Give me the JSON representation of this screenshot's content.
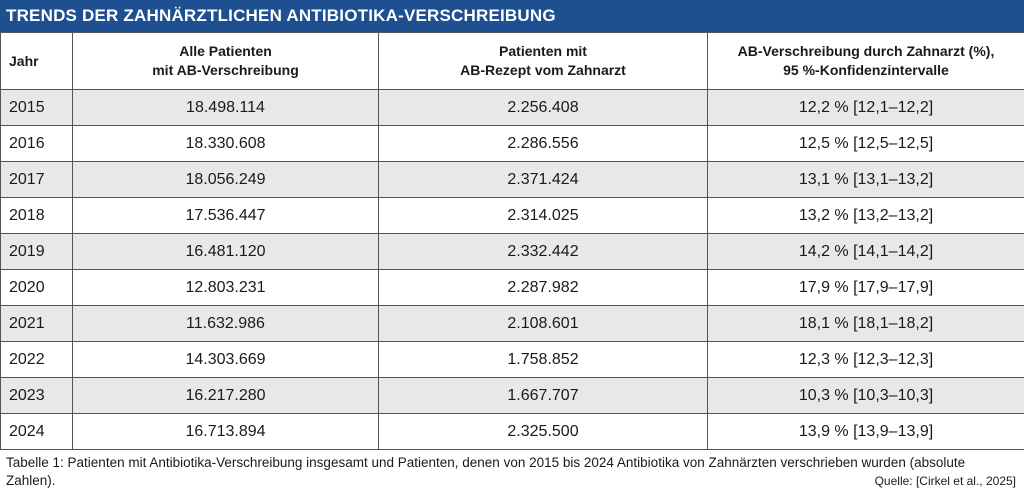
{
  "title": "TRENDS DER ZAHNÄRZTLICHEN ANTIBIOTIKA-VERSCHREIBUNG",
  "headers": [
    [
      "Jahr",
      ""
    ],
    [
      "Alle Patienten",
      "mit AB-Verschreibung"
    ],
    [
      "Patienten mit",
      "AB-Rezept vom Zahnarzt"
    ],
    [
      "AB-Verschreibung durch Zahnarzt (%),",
      "95 %-Konfidenzintervalle"
    ]
  ],
  "rows": [
    [
      "2015",
      "18.498.114",
      "2.256.408",
      "12,2 % [12,1–12,2]"
    ],
    [
      "2016",
      "18.330.608",
      "2.286.556",
      "12,5 % [12,5–12,5]"
    ],
    [
      "2017",
      "18.056.249",
      "2.371.424",
      "13,1 % [13,1–13,2]"
    ],
    [
      "2018",
      "17.536.447",
      "2.314.025",
      "13,2 % [13,2–13,2]"
    ],
    [
      "2019",
      "16.481.120",
      "2.332.442",
      "14,2 % [14,1–14,2]"
    ],
    [
      "2020",
      "12.803.231",
      "2.287.982",
      "17,9 % [17,9–17,9]"
    ],
    [
      "2021",
      "11.632.986",
      "2.108.601",
      "18,1 % [18,1–18,2]"
    ],
    [
      "2022",
      "14.303.669",
      "1.758.852",
      "12,3 % [12,3–12,3]"
    ],
    [
      "2023",
      "16.217.280",
      "1.667.707",
      "10,3 % [10,3–10,3]"
    ],
    [
      "2024",
      "16.713.894",
      "2.325.500",
      "13,9 % [13,9–13,9]"
    ]
  ],
  "caption": "Tabelle 1: Patienten mit Antibiotika-Verschreibung insgesamt und Patienten, denen von 2015 bis 2024 Antibiotika von Zahnärzten verschrieben wurden (absolute Zahlen).",
  "source": "Quelle: [Cirkel et al., 2025]"
}
